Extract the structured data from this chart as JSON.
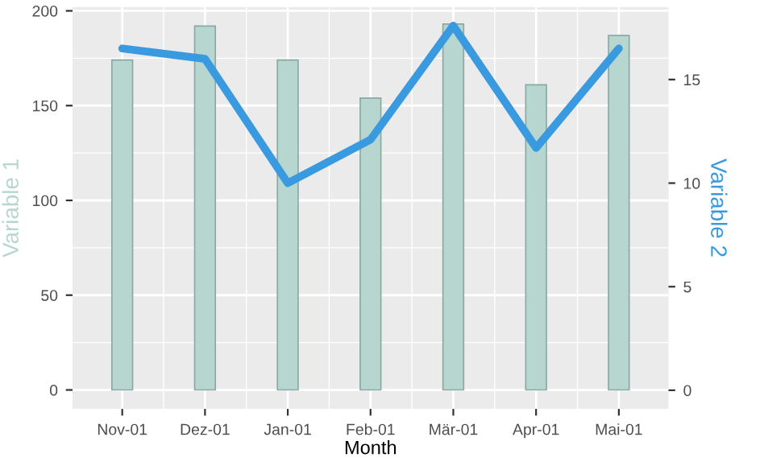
{
  "chart_data": {
    "type": "bar",
    "xlabel": "Month",
    "ylabel": "Variable 1",
    "y2label": "Variable 2",
    "categories": [
      "Nov-01",
      "Dez-01",
      "Jan-01",
      "Feb-01",
      "Mär-01",
      "Apr-01",
      "Mai-01"
    ],
    "series": [
      {
        "color": "#b7d6d0",
        "values": [
          174,
          192,
          174,
          154,
          193,
          161,
          187
        ]
      },
      {
        "type": "line",
        "axis": "y2",
        "color": "#3a9ae0",
        "values": [
          16.5,
          16.0,
          10.0,
          12.1,
          17.6,
          11.7,
          16.5
        ]
      }
    ],
    "ylim": [
      -10,
      202
    ],
    "yticks": [
      0,
      50,
      100,
      150,
      200
    ],
    "y2lim": [
      -0.9,
      18.5
    ],
    "y2ticks": [
      0,
      5,
      10,
      15
    ],
    "grid": true,
    "legend": false,
    "marker": "none",
    "line_style": "solid"
  }
}
